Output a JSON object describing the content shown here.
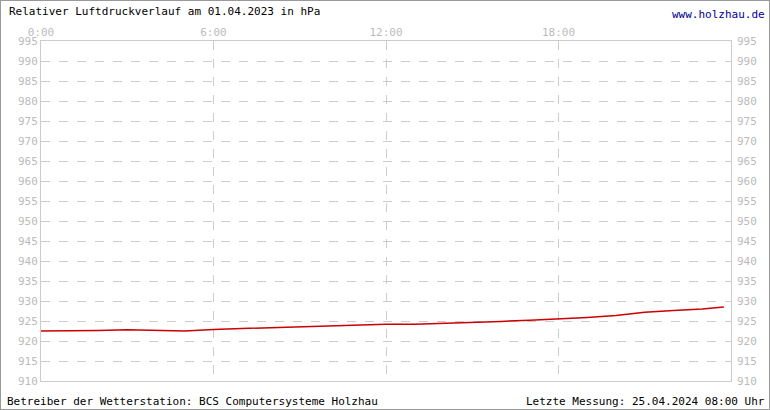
{
  "chart_data": {
    "type": "line",
    "title": "Relativer Luftdruckverlauf am 01.04.2023 in hPa",
    "annotations": [
      "www.holzhau.de",
      "Betreiber der Wetterstation: BCS Computersysteme Holzhau",
      "Letzte Messung: 25.04.2024 08:00 Uhr"
    ],
    "x": [
      0,
      1,
      2,
      3,
      4,
      5,
      6,
      7,
      8,
      9,
      10,
      11,
      12,
      13,
      14,
      15,
      16,
      17,
      18,
      19,
      20,
      21,
      22,
      23,
      23.75
    ],
    "series": [
      {
        "name": "Luftdruck",
        "color": "#cc0000",
        "values": [
          922.5,
          922.5,
          922.6,
          922.8,
          922.6,
          922.5,
          922.9,
          923.1,
          923.3,
          923.5,
          923.8,
          924.0,
          924.2,
          924.2,
          924.4,
          924.6,
          924.9,
          925.2,
          925.5,
          925.9,
          926.4,
          927.2,
          927.6,
          928.0,
          928.5
        ]
      }
    ],
    "xlim": [
      0,
      24
    ],
    "xticks": [
      {
        "value": 0,
        "label": "0:00"
      },
      {
        "value": 6,
        "label": "6:00"
      },
      {
        "value": 12,
        "label": "12:00"
      },
      {
        "value": 18,
        "label": "18:00"
      }
    ],
    "ylim": [
      910,
      995
    ],
    "yticks": [
      910,
      915,
      920,
      925,
      930,
      935,
      940,
      945,
      950,
      955,
      960,
      965,
      970,
      975,
      980,
      985,
      990,
      995
    ],
    "grid": true
  }
}
